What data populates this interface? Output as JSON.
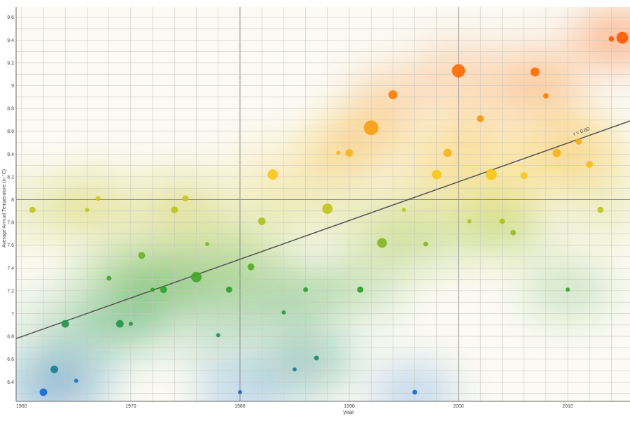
{
  "chart_data": {
    "type": "scatter",
    "title": "",
    "xlabel": "year",
    "ylabel": "Average Annual Temperature (in °C)",
    "xlim": [
      1959.5,
      2015.7
    ],
    "ylim": [
      6.23,
      9.69
    ],
    "xticks": [
      1960,
      1970,
      1980,
      1990,
      2000,
      2010
    ],
    "yticks": [
      "6.4",
      "6.6",
      "6.8",
      "7",
      "7.2",
      "7.4",
      "7.6",
      "7.8",
      "8",
      "8.2",
      "8.4",
      "8.6",
      "8.8",
      "9",
      "9.2",
      "9.4",
      "9.6"
    ],
    "grid": true,
    "trendline": {
      "label": "r = 0.60",
      "start": [
        1959.5,
        6.78
      ],
      "end": [
        2015.7,
        8.69
      ]
    },
    "points": [
      {
        "x": 1961,
        "y": 7.91,
        "s": 4
      },
      {
        "x": 1962,
        "y": 6.31,
        "s": 5
      },
      {
        "x": 1963,
        "y": 6.51,
        "s": 5
      },
      {
        "x": 1964,
        "y": 6.91,
        "s": 5
      },
      {
        "x": 1965,
        "y": 6.41,
        "s": 2.5
      },
      {
        "x": 1966,
        "y": 7.91,
        "s": 2.5
      },
      {
        "x": 1967,
        "y": 8.01,
        "s": 3
      },
      {
        "x": 1968,
        "y": 7.31,
        "s": 3
      },
      {
        "x": 1969,
        "y": 6.91,
        "s": 5
      },
      {
        "x": 1970,
        "y": 6.91,
        "s": 2.5
      },
      {
        "x": 1971,
        "y": 7.51,
        "s": 4.5
      },
      {
        "x": 1972,
        "y": 7.21,
        "s": 2.5
      },
      {
        "x": 1973,
        "y": 7.21,
        "s": 4.5
      },
      {
        "x": 1974,
        "y": 7.91,
        "s": 4.5
      },
      {
        "x": 1975,
        "y": 8.01,
        "s": 4
      },
      {
        "x": 1976,
        "y": 7.32,
        "s": 7
      },
      {
        "x": 1977,
        "y": 7.61,
        "s": 2.5
      },
      {
        "x": 1978,
        "y": 6.81,
        "s": 2.5
      },
      {
        "x": 1979,
        "y": 7.21,
        "s": 4
      },
      {
        "x": 1980,
        "y": 6.31,
        "s": 2.5
      },
      {
        "x": 1981,
        "y": 7.41,
        "s": 4.5
      },
      {
        "x": 1982,
        "y": 7.81,
        "s": 5
      },
      {
        "x": 1983,
        "y": 8.22,
        "s": 7
      },
      {
        "x": 1984,
        "y": 7.01,
        "s": 2.5
      },
      {
        "x": 1985,
        "y": 6.51,
        "s": 2.5
      },
      {
        "x": 1986,
        "y": 7.21,
        "s": 3
      },
      {
        "x": 1987,
        "y": 6.61,
        "s": 3
      },
      {
        "x": 1988,
        "y": 7.92,
        "s": 7
      },
      {
        "x": 1989,
        "y": 8.41,
        "s": 2.5
      },
      {
        "x": 1990,
        "y": 8.41,
        "s": 5
      },
      {
        "x": 1991,
        "y": 7.21,
        "s": 4
      },
      {
        "x": 1992,
        "y": 8.63,
        "s": 10
      },
      {
        "x": 1993,
        "y": 7.62,
        "s": 6.5
      },
      {
        "x": 1994,
        "y": 8.92,
        "s": 6
      },
      {
        "x": 1995,
        "y": 7.91,
        "s": 2.5
      },
      {
        "x": 1996,
        "y": 6.31,
        "s": 3
      },
      {
        "x": 1997,
        "y": 7.61,
        "s": 3
      },
      {
        "x": 1998,
        "y": 8.22,
        "s": 6.5
      },
      {
        "x": 1999,
        "y": 8.41,
        "s": 5.5
      },
      {
        "x": 2000,
        "y": 9.13,
        "s": 9
      },
      {
        "x": 2001,
        "y": 7.81,
        "s": 2.5
      },
      {
        "x": 2002,
        "y": 8.71,
        "s": 4.5
      },
      {
        "x": 2003,
        "y": 8.22,
        "s": 7.5
      },
      {
        "x": 2004,
        "y": 7.81,
        "s": 3.5
      },
      {
        "x": 2005,
        "y": 7.71,
        "s": 3.5
      },
      {
        "x": 2006,
        "y": 8.21,
        "s": 4.5
      },
      {
        "x": 2007,
        "y": 9.12,
        "s": 6
      },
      {
        "x": 2008,
        "y": 8.91,
        "s": 3.5
      },
      {
        "x": 2009,
        "y": 8.41,
        "s": 5.5
      },
      {
        "x": 2010,
        "y": 7.21,
        "s": 2.5
      },
      {
        "x": 2011,
        "y": 8.51,
        "s": 4
      },
      {
        "x": 2012,
        "y": 8.31,
        "s": 4.5
      },
      {
        "x": 2013,
        "y": 7.91,
        "s": 4
      },
      {
        "x": 2014,
        "y": 9.41,
        "s": 3.5
      },
      {
        "x": 2015,
        "y": 9.42,
        "s": 8
      }
    ],
    "color_scale": [
      {
        "v": 6.3,
        "c": "#1565d8"
      },
      {
        "v": 6.6,
        "c": "#138a6a"
      },
      {
        "v": 7.2,
        "c": "#2a9e2a"
      },
      {
        "v": 7.8,
        "c": "#a6c21e"
      },
      {
        "v": 8.2,
        "c": "#f7c81a"
      },
      {
        "v": 8.6,
        "c": "#f7a012"
      },
      {
        "v": 9.1,
        "c": "#ff6a00"
      },
      {
        "v": 9.5,
        "c": "#ff5200"
      }
    ]
  }
}
